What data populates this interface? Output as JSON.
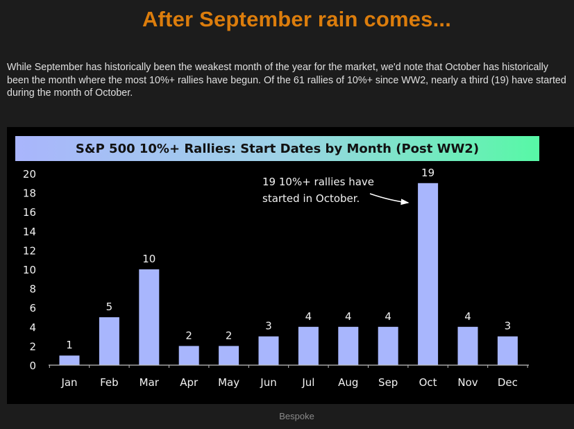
{
  "page": {
    "title": "After September rain comes...",
    "description": "While September has historically been the weakest month of the year for the market, we'd note that October has historically been the month where the most 10%+ rallies have begun. Of the 61 rallies of 10%+ since WW2, nearly a third (19) have started during the month of October.",
    "source": "Bespoke"
  },
  "colors": {
    "title": "#dc7d0c",
    "bar": "#a8b6fd",
    "header_gradient": [
      "#a9b5fc",
      "#57f8a6"
    ]
  },
  "chart_data": {
    "type": "bar",
    "title": "S&P 500 10%+ Rallies: Start Dates by Month (Post WW2)",
    "categories": [
      "Jan",
      "Feb",
      "Mar",
      "Apr",
      "May",
      "Jun",
      "Jul",
      "Aug",
      "Sep",
      "Oct",
      "Nov",
      "Dec"
    ],
    "values": [
      1,
      5,
      10,
      2,
      2,
      3,
      4,
      4,
      4,
      19,
      4,
      3
    ],
    "ylim": [
      0,
      20
    ],
    "yticks": [
      0,
      2,
      4,
      6,
      8,
      10,
      12,
      14,
      16,
      18,
      20
    ],
    "xlabel": "",
    "ylabel": "",
    "grid": false,
    "data_labels": true,
    "annotation": {
      "lines": [
        "19 10%+ rallies have",
        "started in October."
      ],
      "target": "Oct"
    }
  }
}
